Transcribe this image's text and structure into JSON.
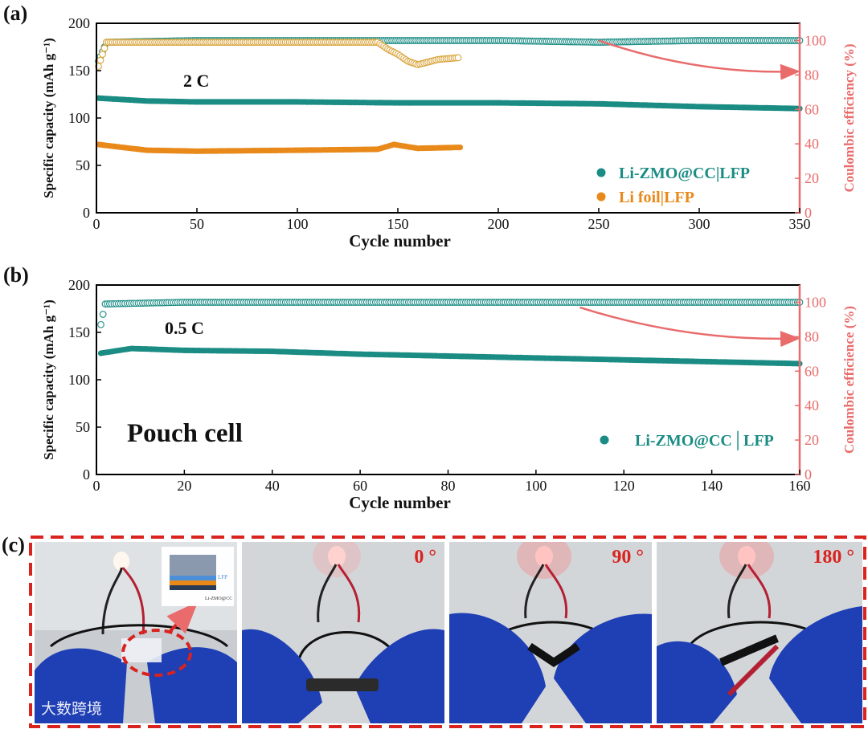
{
  "chart_data": [
    {
      "panel_label": "(a)",
      "type": "scatter",
      "xlabel": "Cycle number",
      "ylabel": "Specific capacity (mAh g⁻¹)",
      "y2label": "Coulombic efficiency (%)",
      "xlim": [
        0,
        350
      ],
      "ylim": [
        0,
        200
      ],
      "y2lim": [
        0,
        110
      ],
      "xticks": [
        0,
        50,
        100,
        150,
        200,
        250,
        300,
        350
      ],
      "yticks": [
        0,
        50,
        100,
        150,
        200
      ],
      "y2ticks": [
        0,
        20,
        40,
        60,
        80,
        100
      ],
      "annotation": "2 C",
      "legend_position": "bottom-right",
      "series": [
        {
          "name": "Li-ZMO@CC|LFP",
          "kind": "capacity",
          "color": "#1a8c84",
          "x": [
            1,
            25,
            50,
            100,
            150,
            200,
            250,
            300,
            350
          ],
          "y": [
            121,
            118,
            117,
            117,
            116,
            116,
            115,
            112,
            110
          ]
        },
        {
          "name": "Li foil|LFP",
          "kind": "capacity",
          "color": "#e8891a",
          "x": [
            1,
            25,
            50,
            100,
            140,
            148,
            160,
            181
          ],
          "y": [
            72,
            66,
            65,
            66,
            67,
            72,
            68,
            69
          ]
        },
        {
          "kind": "efficiency",
          "color": "#1a8c84",
          "x": [
            1,
            5,
            50,
            100,
            150,
            200,
            250,
            300,
            350
          ],
          "y": [
            88,
            99,
            100,
            100,
            100,
            100,
            99,
            100,
            100
          ]
        },
        {
          "kind": "efficiency",
          "color": "#d9a33a",
          "x": [
            1,
            5,
            50,
            100,
            140,
            145,
            150,
            155,
            160,
            170,
            180
          ],
          "y": [
            85,
            99,
            99,
            99,
            99,
            95,
            92,
            88,
            86,
            89,
            90
          ]
        }
      ],
      "arrow": {
        "from": [
          250,
          100
        ],
        "to": [
          350,
          82
        ]
      }
    },
    {
      "panel_label": "(b)",
      "type": "scatter",
      "xlabel": "Cycle number",
      "ylabel": "Specific capacity (mAh g⁻¹)",
      "y2label": "Coulombic efficience (%)",
      "xlim": [
        0,
        160
      ],
      "ylim": [
        0,
        200
      ],
      "y2lim": [
        0,
        110
      ],
      "xticks": [
        0,
        20,
        40,
        60,
        80,
        100,
        120,
        140,
        160
      ],
      "yticks": [
        0,
        50,
        100,
        150,
        200
      ],
      "y2ticks": [
        0,
        20,
        40,
        60,
        80,
        100
      ],
      "annotation": "0.5 C",
      "big_annotation": "Pouch cell",
      "legend_position": "bottom-right",
      "series": [
        {
          "name": "Li-ZMO@CC│LFP",
          "kind": "capacity",
          "color": "#1a8c84",
          "x": [
            1,
            8,
            20,
            40,
            60,
            80,
            100,
            120,
            140,
            160
          ],
          "y": [
            128,
            133,
            131,
            130,
            127,
            125,
            123,
            121,
            119,
            117
          ]
        },
        {
          "kind": "efficiency",
          "color": "#1a8c84",
          "x": [
            1,
            2,
            20,
            60,
            100,
            140,
            160
          ],
          "y": [
            87,
            99,
            100,
            100,
            100,
            100,
            100
          ]
        }
      ],
      "arrow": {
        "from": [
          110,
          97
        ],
        "to": [
          160,
          79
        ]
      }
    }
  ],
  "photos": {
    "panel_label": "(c)",
    "inset_labels": [
      "LFP",
      "Li-ZMO@CC"
    ],
    "angles": [
      "0 °",
      "90 °",
      "180 °"
    ],
    "watermark": "大数跨境"
  }
}
